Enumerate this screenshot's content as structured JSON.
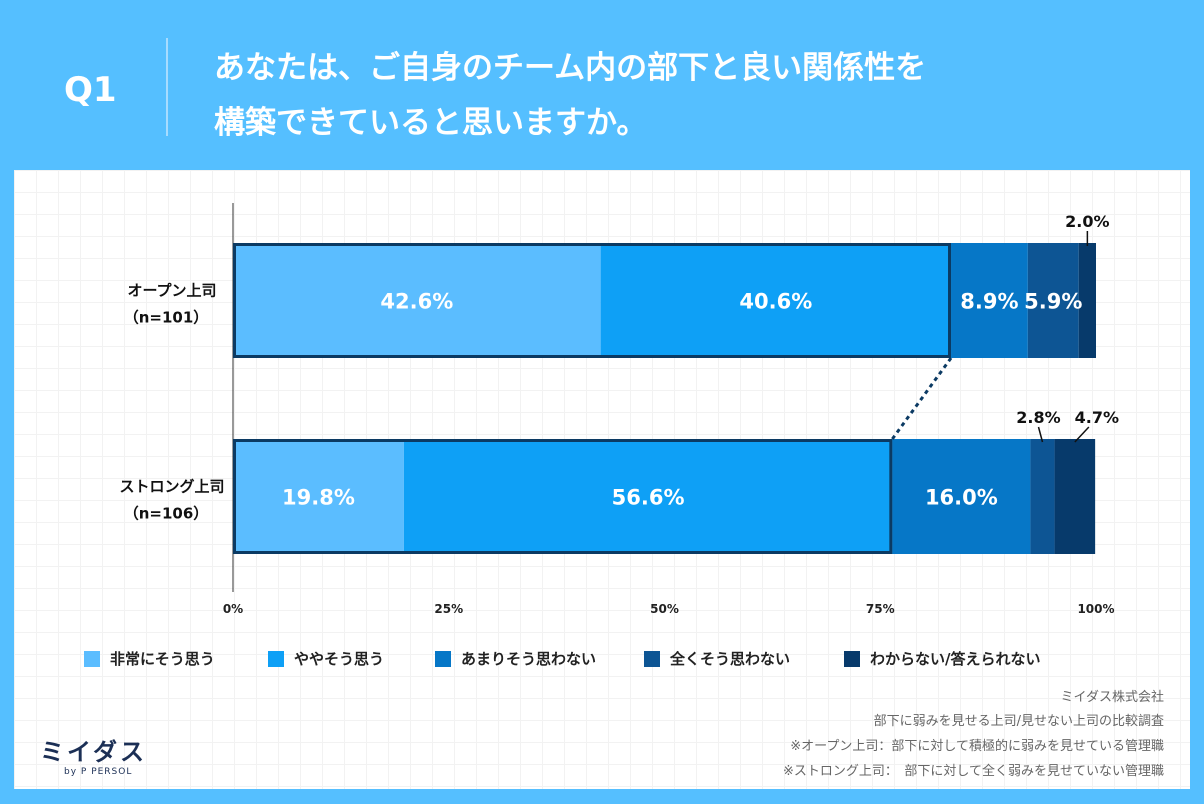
{
  "header": {
    "q_label": "Q1",
    "title_line1": "あなたは、ご自身のチーム内の部下と良い関係性を",
    "title_line2": "構築できていると思いますか。"
  },
  "chart_data": {
    "type": "bar",
    "orientation": "horizontal",
    "stacked": true,
    "normalized": true,
    "categories": [
      "オープン上司（n=101）",
      "ストロング上司（n=106）"
    ],
    "category_labels": [
      {
        "line1": "オープン上司",
        "line2": "（n=101）"
      },
      {
        "line1": "ストロング上司",
        "line2": "（n=106）"
      }
    ],
    "series": [
      {
        "name": "非常にそう思う",
        "values": [
          42.6,
          19.8
        ],
        "color": "#5bbdff"
      },
      {
        "name": "ややそう思う",
        "values": [
          40.6,
          56.6
        ],
        "color": "#0ea0f6"
      },
      {
        "name": "あまりそう思わない",
        "values": [
          8.9,
          16.0
        ],
        "color": "#0677c7"
      },
      {
        "name": "全くそう思わない",
        "values": [
          5.9,
          2.8
        ],
        "color": "#0d5594"
      },
      {
        "name": "わからない/答えられない",
        "values": [
          2.0,
          4.7
        ],
        "color": "#073a6b"
      }
    ],
    "value_labels": [
      [
        "42.6%",
        "40.6%",
        "8.9%",
        "5.9%",
        "2.0%"
      ],
      [
        "19.8%",
        "56.6%",
        "16.0%",
        "2.8%",
        "4.7%"
      ]
    ],
    "xlim": [
      0,
      100
    ],
    "x_ticks": [
      "0%",
      "25%",
      "50%",
      "75%",
      "100%"
    ],
    "legend_position": "bottom",
    "highlight_outline_color": "#0b3a63"
  },
  "footer": {
    "company": "ミイダス株式会社",
    "survey": "部下に弱みを見せる上司/見せない上司の比較調査",
    "note1": "※オープン上司：部下に対して積極的に弱みを見せている管理職",
    "note2": "※ストロング上司：　部下に対して全く弱みを見せていない管理職"
  },
  "logo": {
    "main": "ミイダス",
    "sub": "by P PERSOL"
  }
}
